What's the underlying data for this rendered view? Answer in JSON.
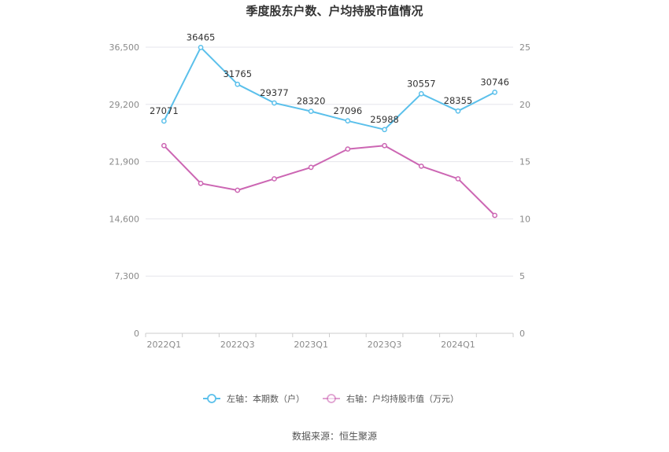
{
  "chart_data": {
    "type": "line",
    "title": "季度股东户数、户均持股市值情况",
    "x": [
      "2022Q1",
      "2022Q2",
      "2022Q3",
      "2022Q4",
      "2023Q1",
      "2023Q2",
      "2023Q3",
      "2023Q4",
      "2024Q1",
      "2024Q2"
    ],
    "x_tick_labels": [
      "2022Q1",
      "2022Q3",
      "2023Q1",
      "2023Q3",
      "2024Q1"
    ],
    "left_axis": {
      "ylim": [
        0,
        36500
      ],
      "ticks": [
        "0",
        "7,300",
        "14,600",
        "21,900",
        "29,200",
        "36,500"
      ]
    },
    "right_axis": {
      "ylim": [
        0,
        25
      ],
      "ticks": [
        "0",
        "5",
        "10",
        "15",
        "20",
        "25"
      ]
    },
    "grid": true,
    "legend_position": "bottom",
    "series": [
      {
        "name": "左轴：本期数（户）",
        "axis": "left",
        "color": "#5bc0eb",
        "values": [
          27071,
          36465,
          31765,
          29377,
          28320,
          27096,
          25988,
          30557,
          28355,
          30746
        ],
        "labels": [
          "27071",
          "36465",
          "31765",
          "29377",
          "28320",
          "27096",
          "25988",
          "30557",
          "28355",
          "30746"
        ]
      },
      {
        "name": "右轴：户均持股市值（万元）",
        "axis": "right",
        "color": "#cc66b3",
        "values": [
          16.4,
          13.1,
          12.5,
          13.5,
          14.5,
          16.1,
          16.4,
          14.6,
          13.5,
          10.3
        ]
      }
    ]
  },
  "source": "数据来源：恒生聚源"
}
